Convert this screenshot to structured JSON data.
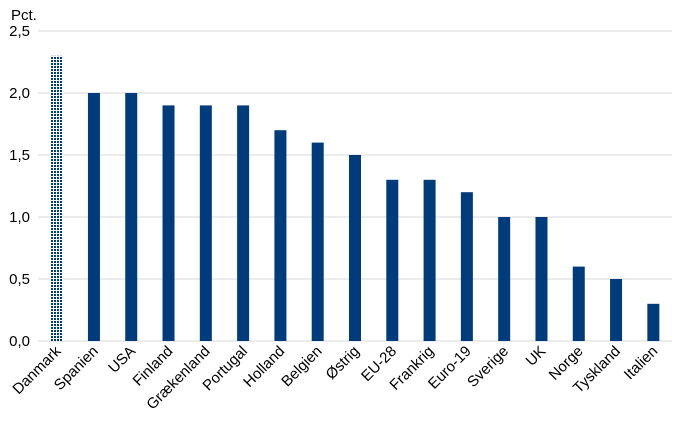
{
  "chart_data": {
    "type": "bar",
    "unit_label": "Pct.",
    "categories": [
      "Danmark",
      "Spanien",
      "USA",
      "Finland",
      "Grækenland",
      "Portugal",
      "Holland",
      "Belgien",
      "Østrig",
      "EU-28",
      "Frankrig",
      "Euro-19",
      "Sverige",
      "UK",
      "Norge",
      "Tyskland",
      "Italien"
    ],
    "values": [
      2.3,
      2.0,
      2.0,
      1.9,
      1.9,
      1.9,
      1.7,
      1.6,
      1.5,
      1.3,
      1.3,
      1.2,
      1.0,
      1.0,
      0.6,
      0.5,
      0.3
    ],
    "highlight": [
      "Danmark"
    ],
    "ylim": [
      0,
      2.5
    ],
    "yticks": [
      0,
      0.5,
      1.0,
      1.5,
      2.0,
      2.5
    ],
    "ytick_labels": [
      "0,0",
      "0,5",
      "1,0",
      "1,5",
      "2,0",
      "2,5"
    ],
    "grid": true,
    "colors": {
      "bar": "#003b7c",
      "highlight": "#003b7c",
      "grid": "#d9d9d9"
    }
  }
}
